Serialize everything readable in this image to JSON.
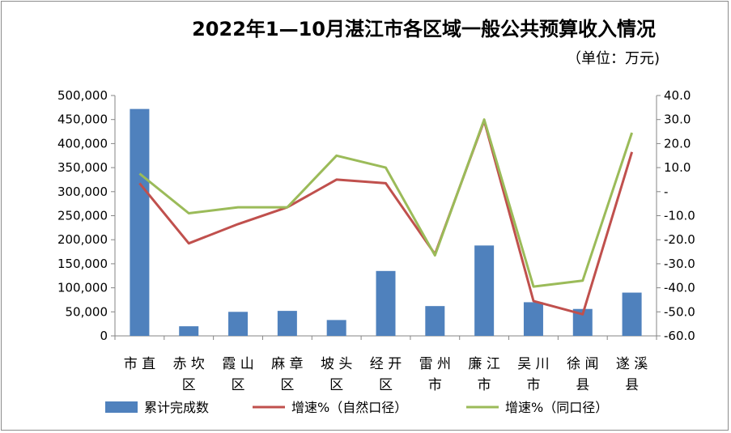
{
  "chart_data": {
    "type": "bar+line",
    "title": "2022年1—10月湛江市各区域一般公共预算收入情况",
    "subtitle": "（单位：万元)",
    "categories": [
      "市直",
      "赤坎区",
      "霞山区",
      "麻章区",
      "坡头区",
      "经开区",
      "雷州市",
      "廉江市",
      "吴川市",
      "徐闻县",
      "遂溪县"
    ],
    "category_lines": [
      [
        "市直"
      ],
      [
        "赤坎",
        "区"
      ],
      [
        "霞山",
        "区"
      ],
      [
        "麻章",
        "区"
      ],
      [
        "坡头",
        "区"
      ],
      [
        "经开",
        "区"
      ],
      [
        "雷州",
        "市"
      ],
      [
        "廉江",
        "市"
      ],
      [
        "吴川",
        "市"
      ],
      [
        "徐闻",
        "县"
      ],
      [
        "遂溪",
        "县"
      ]
    ],
    "left_axis": {
      "ylim": [
        0,
        500000
      ],
      "ticks": [
        0,
        50000,
        100000,
        150000,
        200000,
        250000,
        300000,
        350000,
        400000,
        450000,
        500000
      ],
      "tick_labels": [
        "0",
        "50,000",
        "100,000",
        "150,000",
        "200,000",
        "250,000",
        "300,000",
        "350,000",
        "400,000",
        "450,000",
        "500,000"
      ]
    },
    "right_axis": {
      "ylim": [
        -60,
        40
      ],
      "ticks": [
        -60,
        -50,
        -40,
        -30,
        -20,
        -10,
        0,
        10,
        20,
        30,
        40
      ],
      "tick_labels": [
        "-60.0",
        "-50.0",
        "-40.0",
        "-30.0",
        "-20.0",
        "-10.0",
        "-",
        "10.0",
        "20.0",
        "30.0",
        "40.0"
      ]
    },
    "series": [
      {
        "name": "累计完成数",
        "type": "bar",
        "axis": "left",
        "color": "#4f81bd",
        "values": [
          472000,
          20000,
          50000,
          52000,
          33000,
          135000,
          62000,
          188000,
          70000,
          56000,
          90000
        ]
      },
      {
        "name": "增速%（自然口径）",
        "type": "line",
        "axis": "right",
        "color": "#c0504d",
        "values": [
          3.5,
          -21.5,
          -13.5,
          -6.5,
          5.0,
          3.5,
          -26.0,
          29.5,
          -45.5,
          -51.0,
          16.5
        ]
      },
      {
        "name": "增速%（同口径）",
        "type": "line",
        "axis": "right",
        "color": "#9bbb59",
        "values": [
          7.5,
          -9.0,
          -6.5,
          -6.5,
          15.0,
          10.0,
          -26.5,
          30.0,
          -39.5,
          -37.0,
          24.5
        ]
      }
    ],
    "legend": [
      "累计完成数",
      "增速%（自然口径）",
      "增速%（同口径）"
    ],
    "grid": false
  }
}
